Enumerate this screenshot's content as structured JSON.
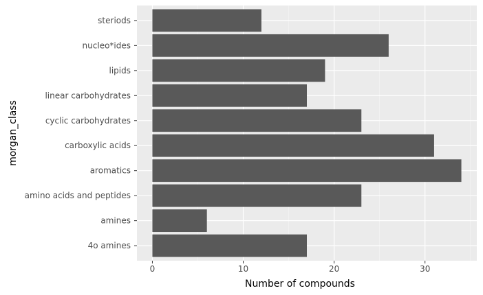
{
  "chart_data": {
    "type": "bar",
    "orientation": "horizontal",
    "title": "",
    "xlabel": "Number of compounds",
    "ylabel": "morgan_class",
    "categories": [
      "4o amines",
      "amines",
      "amino acids and peptides",
      "aromatics",
      "carboxylic acids",
      "cyclic carbohydrates",
      "linear carbohydrates",
      "lipids",
      "nucleo*ides",
      "steriods"
    ],
    "values": [
      17,
      6,
      23,
      34,
      31,
      23,
      17,
      19,
      26,
      12
    ],
    "xlim": [
      -1.7,
      35.7
    ],
    "xticks": [
      0,
      10,
      20,
      30
    ],
    "grid": true,
    "colors": {
      "bar": "#595959",
      "panel": "#ebebeb",
      "grid_major": "#ffffff",
      "grid_minor": "#f5f5f5"
    }
  }
}
